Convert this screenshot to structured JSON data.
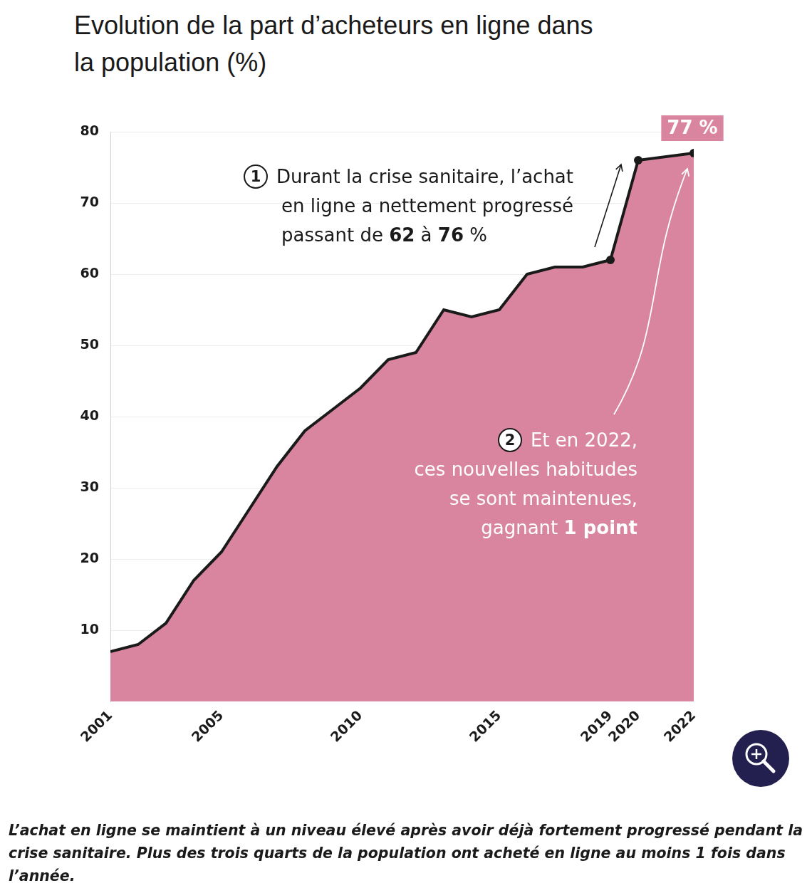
{
  "chart_data": {
    "type": "line",
    "title": "Evolution de la part d’acheteurs en ligne dans la population (%)",
    "caption": "L’achat en ligne se maintient à un niveau élevé après avoir déjà fortement progressé pendant la crise sanitaire. Plus des trois quarts de la population ont acheté en ligne au moins 1 fois dans l’année.",
    "x": [
      2001,
      2002,
      2003,
      2004,
      2005,
      2006,
      2007,
      2008,
      2009,
      2010,
      2011,
      2012,
      2013,
      2014,
      2015,
      2016,
      2017,
      2018,
      2019,
      2020,
      2022
    ],
    "values": [
      7,
      8,
      11,
      17,
      21,
      27,
      33,
      38,
      41,
      44,
      48,
      49,
      55,
      54,
      55,
      60,
      61,
      61,
      62,
      76,
      77
    ],
    "color": "#d9859f",
    "line_color": "#1a1a1a",
    "marked_x": [
      2019,
      2020,
      2022
    ],
    "value_label": {
      "x": 2022,
      "label": "77 %"
    },
    "xlim": [
      2001,
      2022
    ],
    "xticks": [
      2001,
      2005,
      2010,
      2015,
      2019,
      2020,
      2022
    ],
    "ylim": [
      0,
      80
    ],
    "yticks": [
      10,
      20,
      30,
      40,
      50,
      60,
      70,
      80
    ],
    "grid": true,
    "annotations": [
      {
        "number": "1",
        "lines": [
          [
            "Durant la crise sanitaire, l’achat"
          ],
          [
            "en ligne a nettement progressé"
          ],
          [
            "passant de ",
            "62",
            " à ",
            "76",
            " %"
          ]
        ]
      },
      {
        "number": "2",
        "lines": [
          [
            "Et en 2022,"
          ],
          [
            "ces nouvelles habitudes"
          ],
          [
            "se sont maintenues,"
          ],
          [
            "gagnant ",
            "1 point"
          ]
        ]
      }
    ]
  }
}
